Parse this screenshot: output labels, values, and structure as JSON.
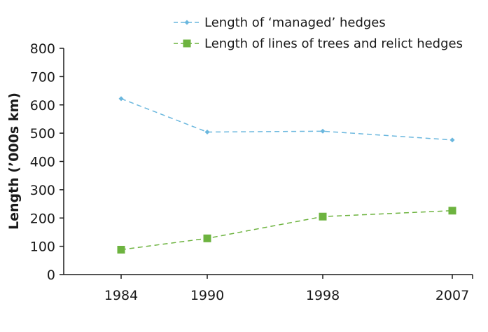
{
  "chart_data": {
    "type": "line",
    "title": "",
    "xlabel": "",
    "ylabel": "Length  (’000s km)",
    "categories": [
      "1984",
      "1990",
      "1998",
      "2007"
    ],
    "x": [
      1984,
      1990,
      1998,
      2007
    ],
    "ylim": [
      0,
      800
    ],
    "yticks": [
      0,
      100,
      200,
      300,
      400,
      500,
      600,
      700,
      800
    ],
    "ytick_labels": [
      "0",
      "100",
      "200",
      "300",
      "400",
      "500",
      "600",
      "700",
      "800"
    ],
    "grid": false,
    "legend_position": "top-right",
    "series": [
      {
        "name": "Length of ‘managed’ hedges",
        "values": [
          622,
          504,
          507,
          476
        ],
        "color": "#6ab7de",
        "line_style": "dashed",
        "marker": "diamond"
      },
      {
        "name": "Length of lines of trees and relict hedges",
        "values": [
          88,
          128,
          205,
          226
        ],
        "color": "#6db33f",
        "line_style": "dashed",
        "marker": "square"
      }
    ],
    "axis_color": "#1a1a1a"
  }
}
